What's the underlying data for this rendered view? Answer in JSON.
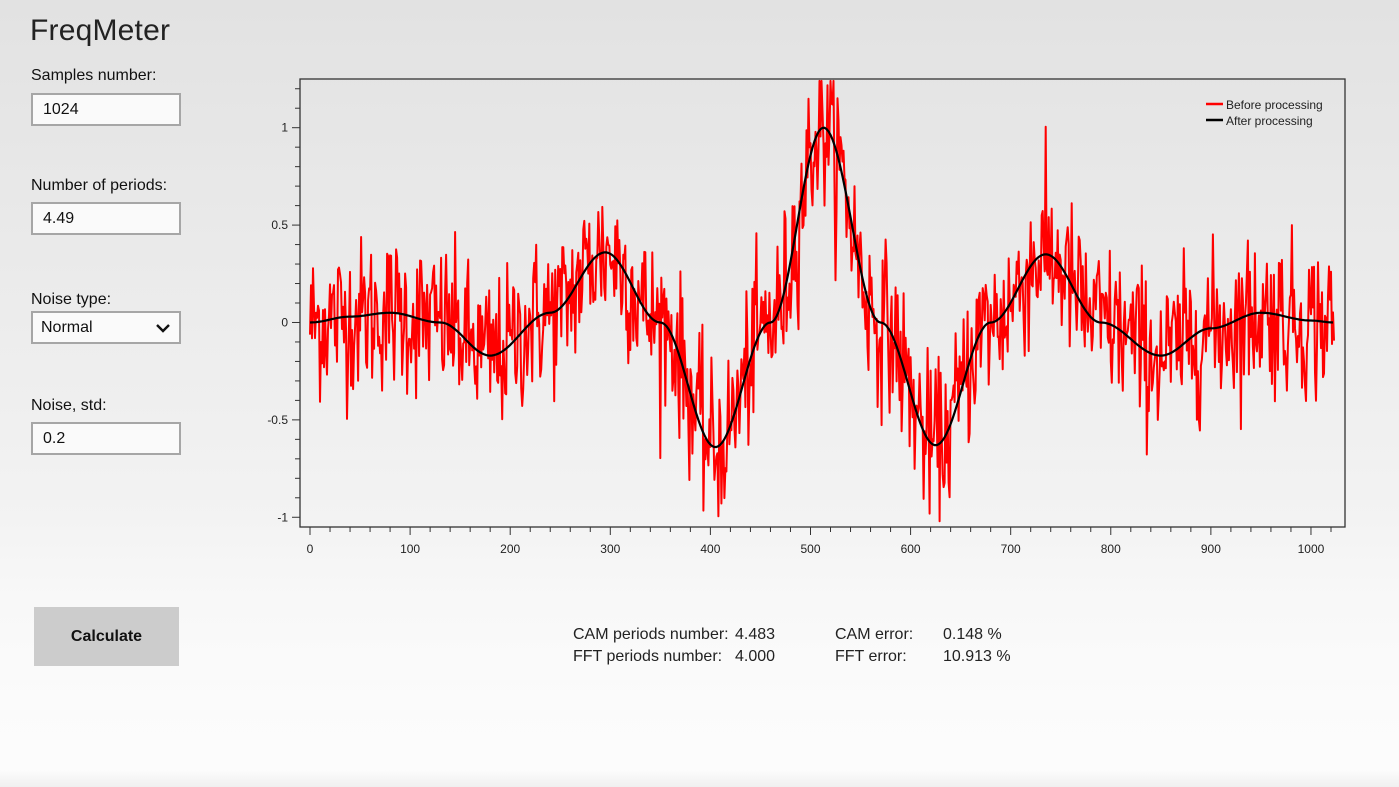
{
  "app": {
    "title": "FreqMeter"
  },
  "form": {
    "samples_label": "Samples number:",
    "samples_value": "1024",
    "periods_label": "Number of periods:",
    "periods_value": "4.49",
    "noise_type_label": "Noise type:",
    "noise_type_value": "Normal",
    "noise_std_label": "Noise, std:",
    "noise_std_value": "0.2",
    "calculate_label": "Calculate",
    "chevron_icon": "chevron-down-icon"
  },
  "results": {
    "cam_periods_label": "CAM periods number:",
    "cam_periods_value": "4.483",
    "fft_periods_label": "FFT periods number:",
    "fft_periods_value": "4.000",
    "cam_error_label": "CAM error:",
    "cam_error_value": "0.148 %",
    "fft_error_label": "FFT error:",
    "fft_error_value": "10.913 %"
  },
  "colors": {
    "before": "#ff0000",
    "after": "#000000",
    "axis": "#333333"
  },
  "chart_data": {
    "type": "line",
    "title": "",
    "xlabel": "",
    "ylabel": "",
    "xlim": [
      -10,
      1034
    ],
    "ylim": [
      -1.05,
      1.25
    ],
    "x_ticks": [
      0,
      100,
      200,
      300,
      400,
      500,
      600,
      700,
      800,
      900,
      1000
    ],
    "x_tick_labels": [
      "0",
      "100",
      "200",
      "300",
      "400",
      "500",
      "600",
      "700",
      "800",
      "900",
      "1000"
    ],
    "y_ticks": [
      -1,
      -0.5,
      0,
      0.5,
      1
    ],
    "y_tick_labels": [
      "-1",
      "-0.5",
      "0",
      "0.5",
      "1"
    ],
    "grid": false,
    "legend_position": "top-right",
    "legend": [
      "Before processing",
      "After processing"
    ],
    "series": [
      {
        "name": "After processing",
        "color": "#000000",
        "x": [
          0,
          40,
          80,
          130,
          180,
          240,
          295,
          350,
          405,
          460,
          513,
          570,
          625,
          680,
          735,
          790,
          850,
          900,
          950,
          1000,
          1023
        ],
        "values": [
          0.0,
          0.03,
          0.05,
          0.0,
          -0.17,
          0.05,
          0.36,
          0.0,
          -0.64,
          0.0,
          1.0,
          0.0,
          -0.63,
          0.0,
          0.35,
          0.0,
          -0.17,
          -0.03,
          0.05,
          0.01,
          0.0
        ]
      },
      {
        "name": "Before processing",
        "color": "#ff0000",
        "description": "After-processing signal plus Gaussian noise (std 0.2), 1024 samples",
        "noise_std": 0.2,
        "x_range": [
          0,
          1023
        ],
        "value_range": [
          -1.02,
          1.24
        ]
      }
    ]
  }
}
